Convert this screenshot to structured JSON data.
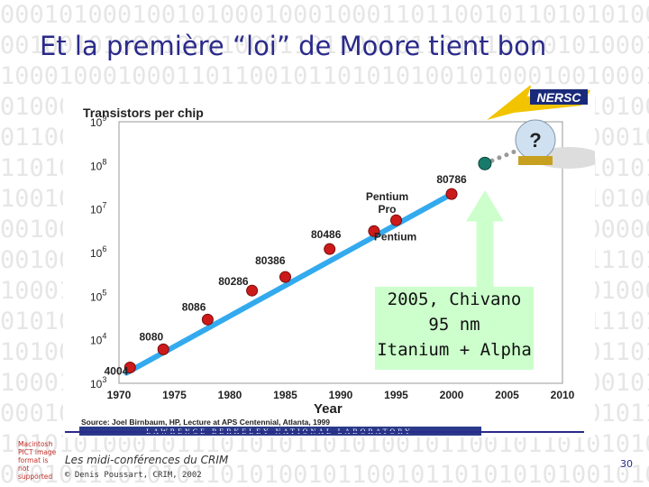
{
  "slide": {
    "title": "Et la première “loi” de Moore tient bon",
    "background_binary": "0001010001001010001000100011011001011010101001010001001000100101000100010101010100101000100000101110101010001011101010110101001011001011010101010010101001010101000101010010101010101001010101010100101001010110101010001010101010101010101001010101",
    "footer_series": "Les midi-conférences du CRIM",
    "footer_author": "© Denis Poussart, CRIM, 2002",
    "page_number": "30",
    "missing_image_text": "Macintosh PICT image format is not supported",
    "accent_color": "#2a2a8a"
  },
  "callout": {
    "line1": "2005, Chivano",
    "line2": "95 nm",
    "line3": "Itanium + Alpha"
  },
  "logo": {
    "text": "NERSC"
  },
  "chart_data": {
    "type": "scatter",
    "scale_y": "log",
    "title": "Transistors per chip",
    "xlabel": "Year",
    "xlim": [
      1970,
      2010
    ],
    "ylim": [
      1000,
      1000000000
    ],
    "x_ticks": [
      "1970",
      "1975",
      "1980",
      "1985",
      "1990",
      "1995",
      "2000",
      "2005",
      "2010"
    ],
    "y_ticks": [
      {
        "base": "10",
        "exp": "3",
        "value": 1000
      },
      {
        "base": "10",
        "exp": "4",
        "value": 10000
      },
      {
        "base": "10",
        "exp": "5",
        "value": 100000
      },
      {
        "base": "10",
        "exp": "6",
        "value": 1000000
      },
      {
        "base": "10",
        "exp": "7",
        "value": 10000000
      },
      {
        "base": "10",
        "exp": "8",
        "value": 100000000
      },
      {
        "base": "10",
        "exp": "9",
        "value": 1000000000
      }
    ],
    "points": [
      {
        "label": "4004",
        "year": 1971,
        "value": 2300
      },
      {
        "label": "8080",
        "year": 1974,
        "value": 6000
      },
      {
        "label": "8086",
        "year": 1978,
        "value": 29000
      },
      {
        "label": "80286",
        "year": 1982,
        "value": 134000
      },
      {
        "label": "80386",
        "year": 1985,
        "value": 275000
      },
      {
        "label": "80486",
        "year": 1989,
        "value": 1200000
      },
      {
        "label": "Pentium",
        "year": 1993,
        "value": 3100000
      },
      {
        "label": "Pentium Pro",
        "year": 1995,
        "value": 5500000
      },
      {
        "label": "80786",
        "year": 2000,
        "value": 22000000
      }
    ],
    "projection_point": {
      "year": 2003,
      "value": 110000000
    },
    "question_mark": "?",
    "source": "Source: Joel Birnbaum, HP, Lecture at APS Centennial, Atlanta, 1999",
    "lab_banner": "LAWRENCE BERKELEY NATIONAL LABORATORY"
  }
}
